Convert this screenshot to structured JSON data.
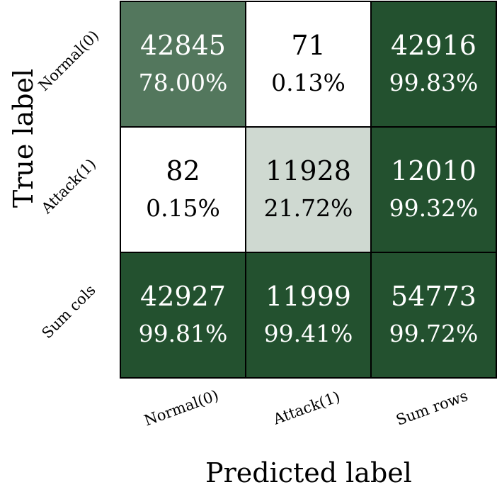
{
  "chart_data": {
    "type": "heatmap",
    "title": "",
    "xlabel": "Predicted label",
    "ylabel": "True label",
    "x_categories": [
      "Normal(0)",
      "Attack(1)",
      "Sum rows"
    ],
    "y_categories": [
      "Normal(0)",
      "Attack(1)",
      "Sum cols"
    ],
    "cells": [
      [
        {
          "count": "42845",
          "percent": "78.00%",
          "shade": 0.78
        },
        {
          "count": "71",
          "percent": "0.13%",
          "shade": 0.0
        },
        {
          "count": "42916",
          "percent": "99.83%",
          "shade": "summary"
        }
      ],
      [
        {
          "count": "82",
          "percent": "0.15%",
          "shade": 0.0
        },
        {
          "count": "11928",
          "percent": "21.72%",
          "shade": 0.22
        },
        {
          "count": "12010",
          "percent": "99.32%",
          "shade": "summary"
        }
      ],
      [
        {
          "count": "42927",
          "percent": "99.81%",
          "shade": "summary"
        },
        {
          "count": "11999",
          "percent": "99.41%",
          "shade": "summary"
        },
        {
          "count": "54773",
          "percent": "99.72%",
          "shade": "summary"
        }
      ]
    ],
    "colors": {
      "summary": "#23512f",
      "max": "#23512f",
      "min": "#ffffff",
      "grid": "#000000"
    }
  }
}
